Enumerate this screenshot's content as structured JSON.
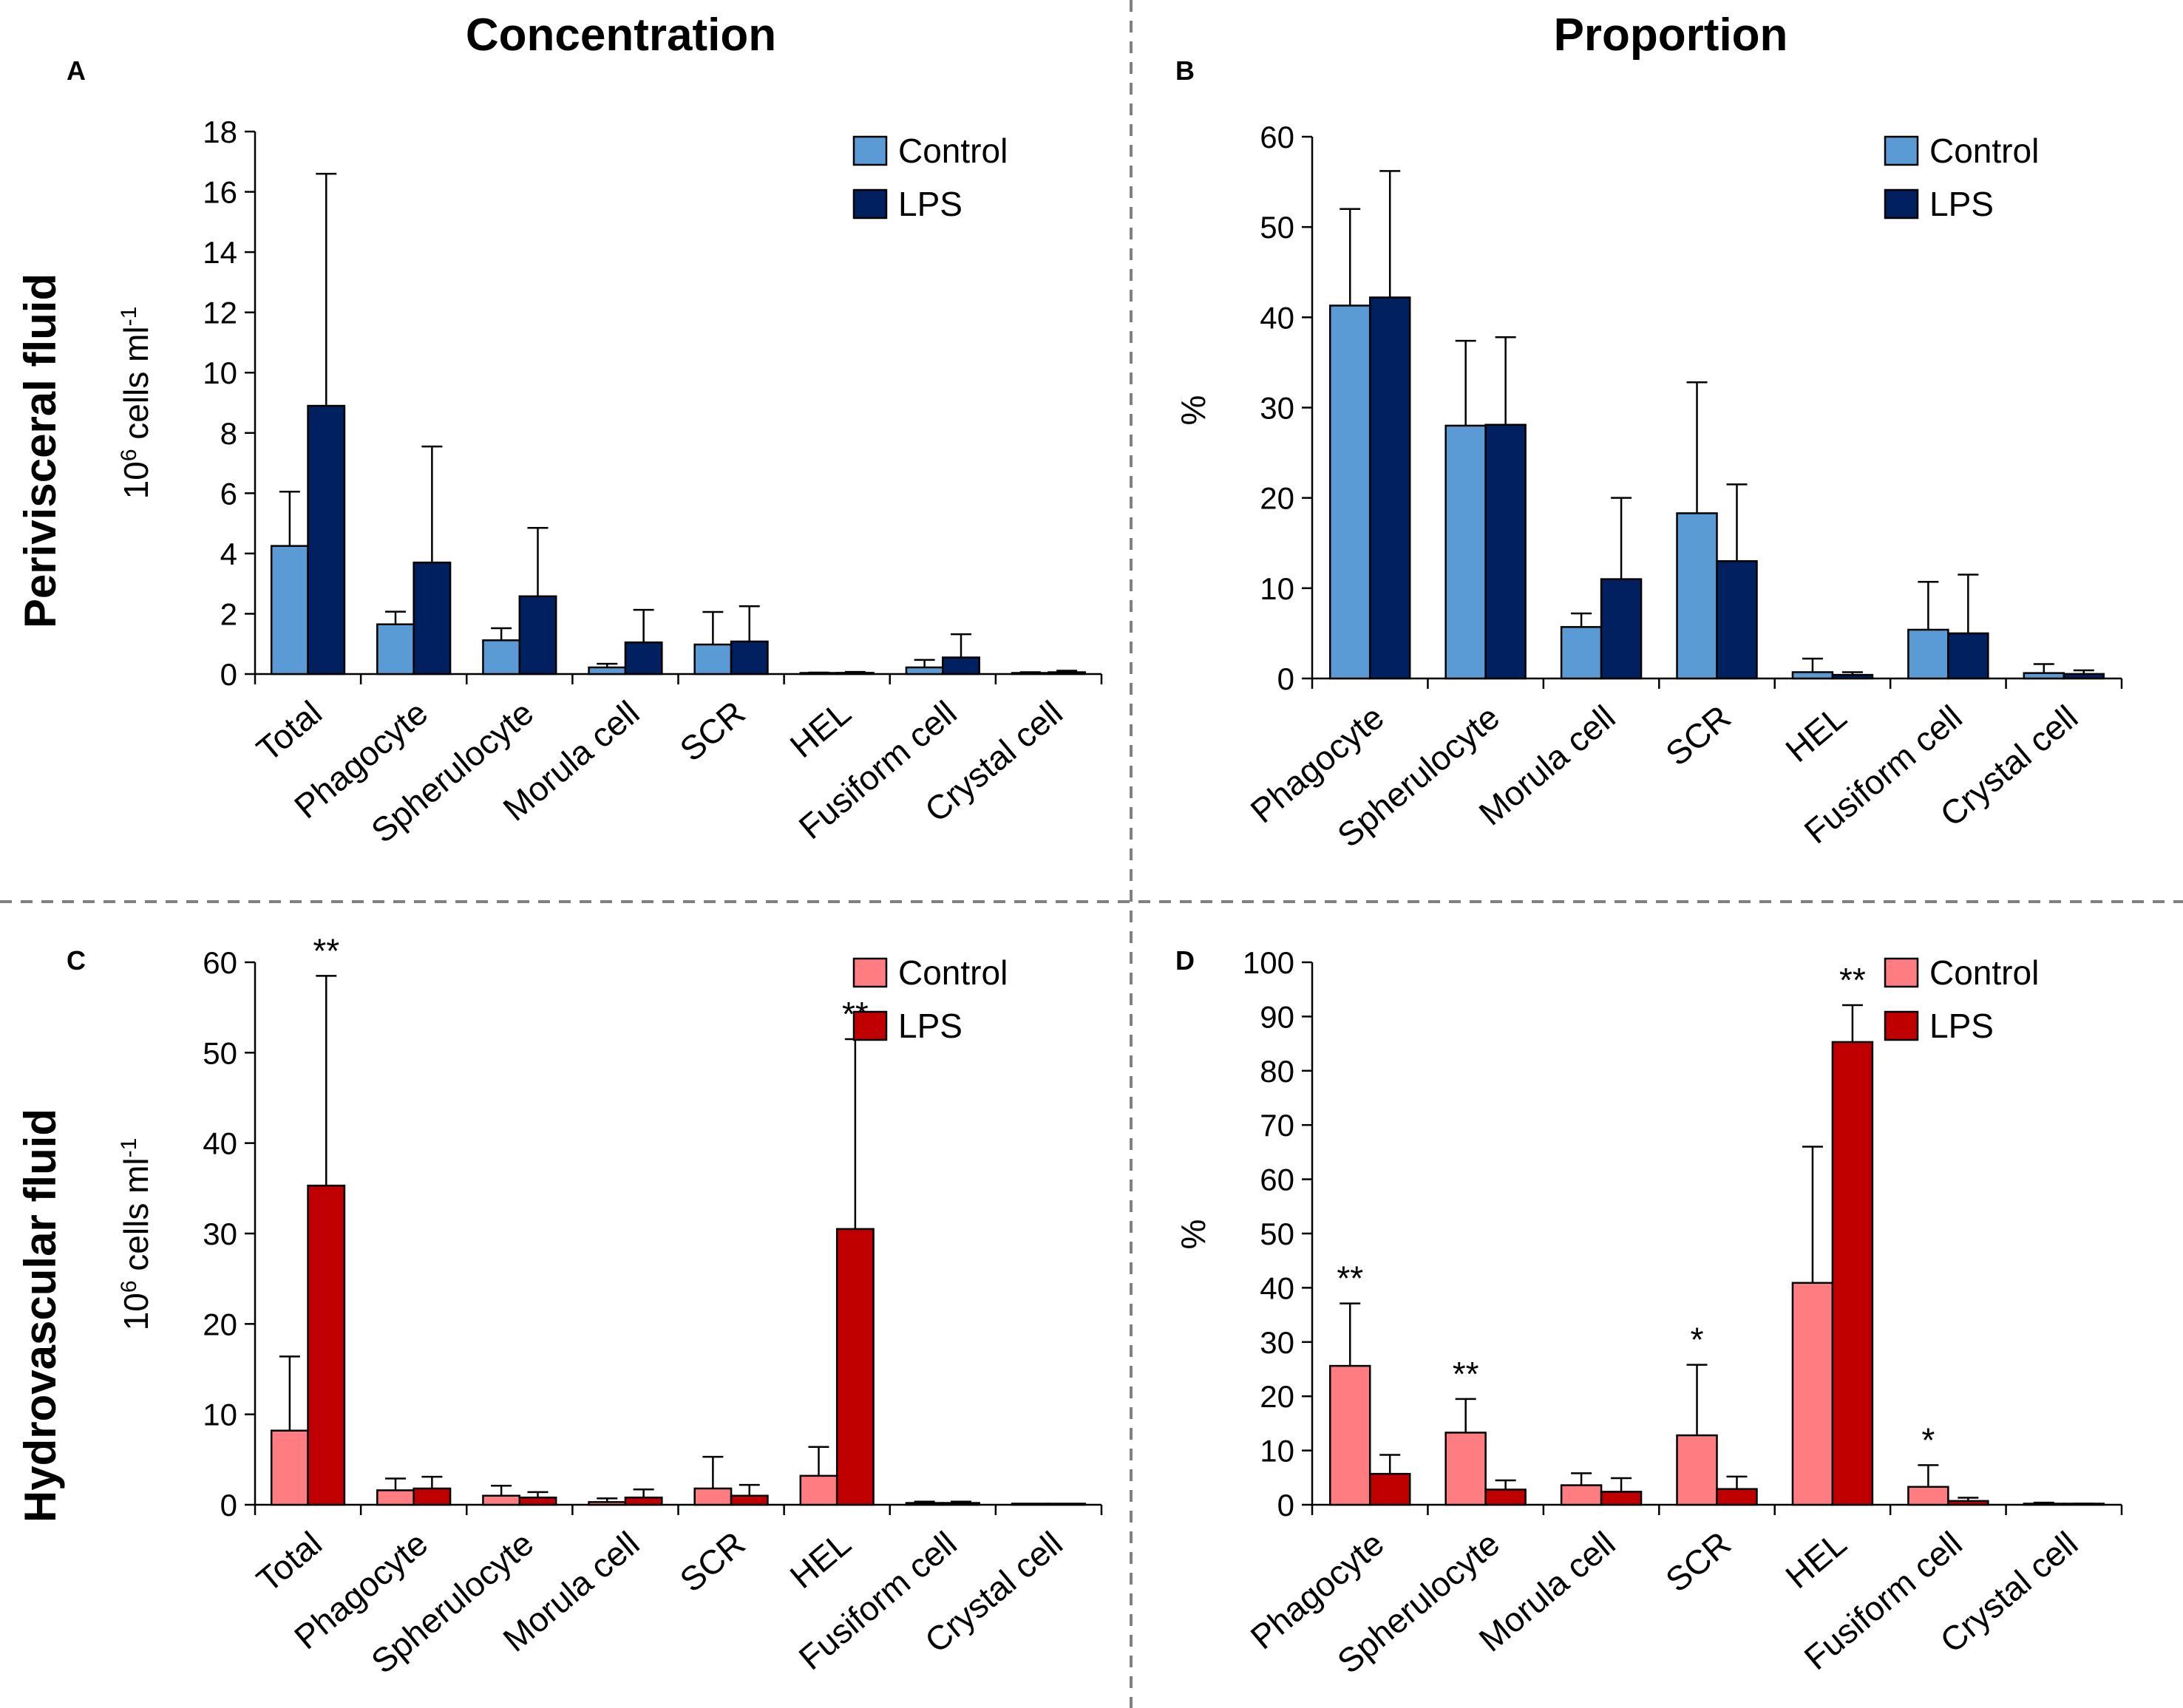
{
  "column_titles": [
    "Concentration",
    "Proportion"
  ],
  "row_titles": [
    "Perivisceral fluid",
    "Hydrovascular fluid"
  ],
  "colors": {
    "blue_control": "#5b9bd5",
    "blue_lps": "#002060",
    "red_control": "#ff7c80",
    "red_lps": "#c00000"
  },
  "chart_data": [
    {
      "panel": "A",
      "type": "bar",
      "title": "Concentration",
      "row": "Perivisceral fluid",
      "ylabel_main": "10",
      "ylabel_sup": "6",
      "ylabel_rest": " cells ml",
      "ylabel_sup2": "-1",
      "ylim": [
        0,
        18
      ],
      "yticks": [
        0,
        2,
        4,
        6,
        8,
        10,
        12,
        14,
        16,
        18
      ],
      "categories": [
        "Total",
        "Phagocyte",
        "Spherulocyte",
        "Morula cell",
        "SCR",
        "HEL",
        "Fusiform cell",
        "Crystal cell"
      ],
      "series": [
        {
          "name": "Control",
          "color": "#5b9bd5",
          "values": [
            4.25,
            1.65,
            1.12,
            0.22,
            0.98,
            0.03,
            0.22,
            0.03
          ],
          "errors": [
            1.8,
            0.42,
            0.4,
            0.12,
            1.08,
            0.02,
            0.25,
            0.03
          ]
        },
        {
          "name": "LPS",
          "color": "#002060",
          "values": [
            8.9,
            3.7,
            2.58,
            1.05,
            1.08,
            0.04,
            0.55,
            0.06
          ],
          "errors": [
            7.7,
            3.85,
            2.27,
            1.08,
            1.17,
            0.03,
            0.77,
            0.05
          ]
        }
      ],
      "significance": []
    },
    {
      "panel": "B",
      "type": "bar",
      "title": "Proportion",
      "row": "Perivisceral fluid",
      "ylabel_main": "%",
      "ylim": [
        0,
        60
      ],
      "yticks": [
        0,
        10,
        20,
        30,
        40,
        50,
        60
      ],
      "categories": [
        "Phagocyte",
        "Spherulocyte",
        "Morula cell",
        "SCR",
        "HEL",
        "Fusiform cell",
        "Crystal cell"
      ],
      "series": [
        {
          "name": "Control",
          "color": "#5b9bd5",
          "values": [
            41.3,
            28.0,
            5.7,
            18.3,
            0.7,
            5.4,
            0.6
          ],
          "errors": [
            10.7,
            9.4,
            1.5,
            14.5,
            1.5,
            5.3,
            1.0
          ]
        },
        {
          "name": "LPS",
          "color": "#002060",
          "values": [
            42.2,
            28.1,
            11.0,
            13.0,
            0.4,
            5.0,
            0.5
          ],
          "errors": [
            14.0,
            9.7,
            9.0,
            8.5,
            0.3,
            6.5,
            0.4
          ]
        }
      ],
      "significance": []
    },
    {
      "panel": "C",
      "type": "bar",
      "title": "Concentration",
      "row": "Hydrovascular fluid",
      "ylabel_main": "10",
      "ylabel_sup": "6",
      "ylabel_rest": " cells ml",
      "ylabel_sup2": "-1",
      "ylim": [
        0,
        60
      ],
      "yticks": [
        0,
        10,
        20,
        30,
        40,
        50,
        60
      ],
      "categories": [
        "Total",
        "Phagocyte",
        "Spherulocyte",
        "Morula cell",
        "SCR",
        "HEL",
        "Fusiform cell",
        "Crystal cell"
      ],
      "series": [
        {
          "name": "Control",
          "color": "#ff7c80",
          "values": [
            8.2,
            1.6,
            1.0,
            0.3,
            1.8,
            3.2,
            0.2,
            0.05
          ],
          "errors": [
            8.2,
            1.3,
            1.1,
            0.4,
            3.5,
            3.2,
            0.15,
            0.05
          ]
        },
        {
          "name": "LPS",
          "color": "#c00000",
          "values": [
            35.3,
            1.8,
            0.8,
            0.8,
            1.0,
            30.5,
            0.2,
            0.05
          ],
          "errors": [
            23.2,
            1.3,
            0.6,
            0.9,
            1.2,
            21.0,
            0.15,
            0.05
          ]
        }
      ],
      "significance": [
        {
          "category": 0,
          "text": "**"
        },
        {
          "category": 5,
          "text": "**"
        }
      ]
    },
    {
      "panel": "D",
      "type": "bar",
      "title": "Proportion",
      "row": "Hydrovascular fluid",
      "ylabel_main": "%",
      "ylim": [
        0,
        100
      ],
      "yticks": [
        0,
        10,
        20,
        30,
        40,
        50,
        60,
        70,
        80,
        90,
        100
      ],
      "categories": [
        "Phagocyte",
        "Spherulocyte",
        "Morula cell",
        "SCR",
        "HEL",
        "Fusiform cell",
        "Crystal cell"
      ],
      "series": [
        {
          "name": "Control",
          "color": "#ff7c80",
          "values": [
            25.6,
            13.3,
            3.6,
            12.8,
            40.9,
            3.3,
            0.2
          ],
          "errors": [
            11.5,
            6.2,
            2.2,
            13.0,
            25.1,
            4.0,
            0.2
          ]
        },
        {
          "name": "LPS",
          "color": "#c00000",
          "values": [
            5.7,
            2.8,
            2.4,
            2.9,
            85.3,
            0.7,
            0.1
          ],
          "errors": [
            3.5,
            1.7,
            2.5,
            2.3,
            6.8,
            0.6,
            0.1
          ]
        }
      ],
      "significance": [
        {
          "category": 0,
          "text": "**"
        },
        {
          "category": 1,
          "text": "**"
        },
        {
          "category": 3,
          "text": "*"
        },
        {
          "category": 4,
          "text": "**"
        },
        {
          "category": 5,
          "text": "*"
        }
      ]
    }
  ]
}
